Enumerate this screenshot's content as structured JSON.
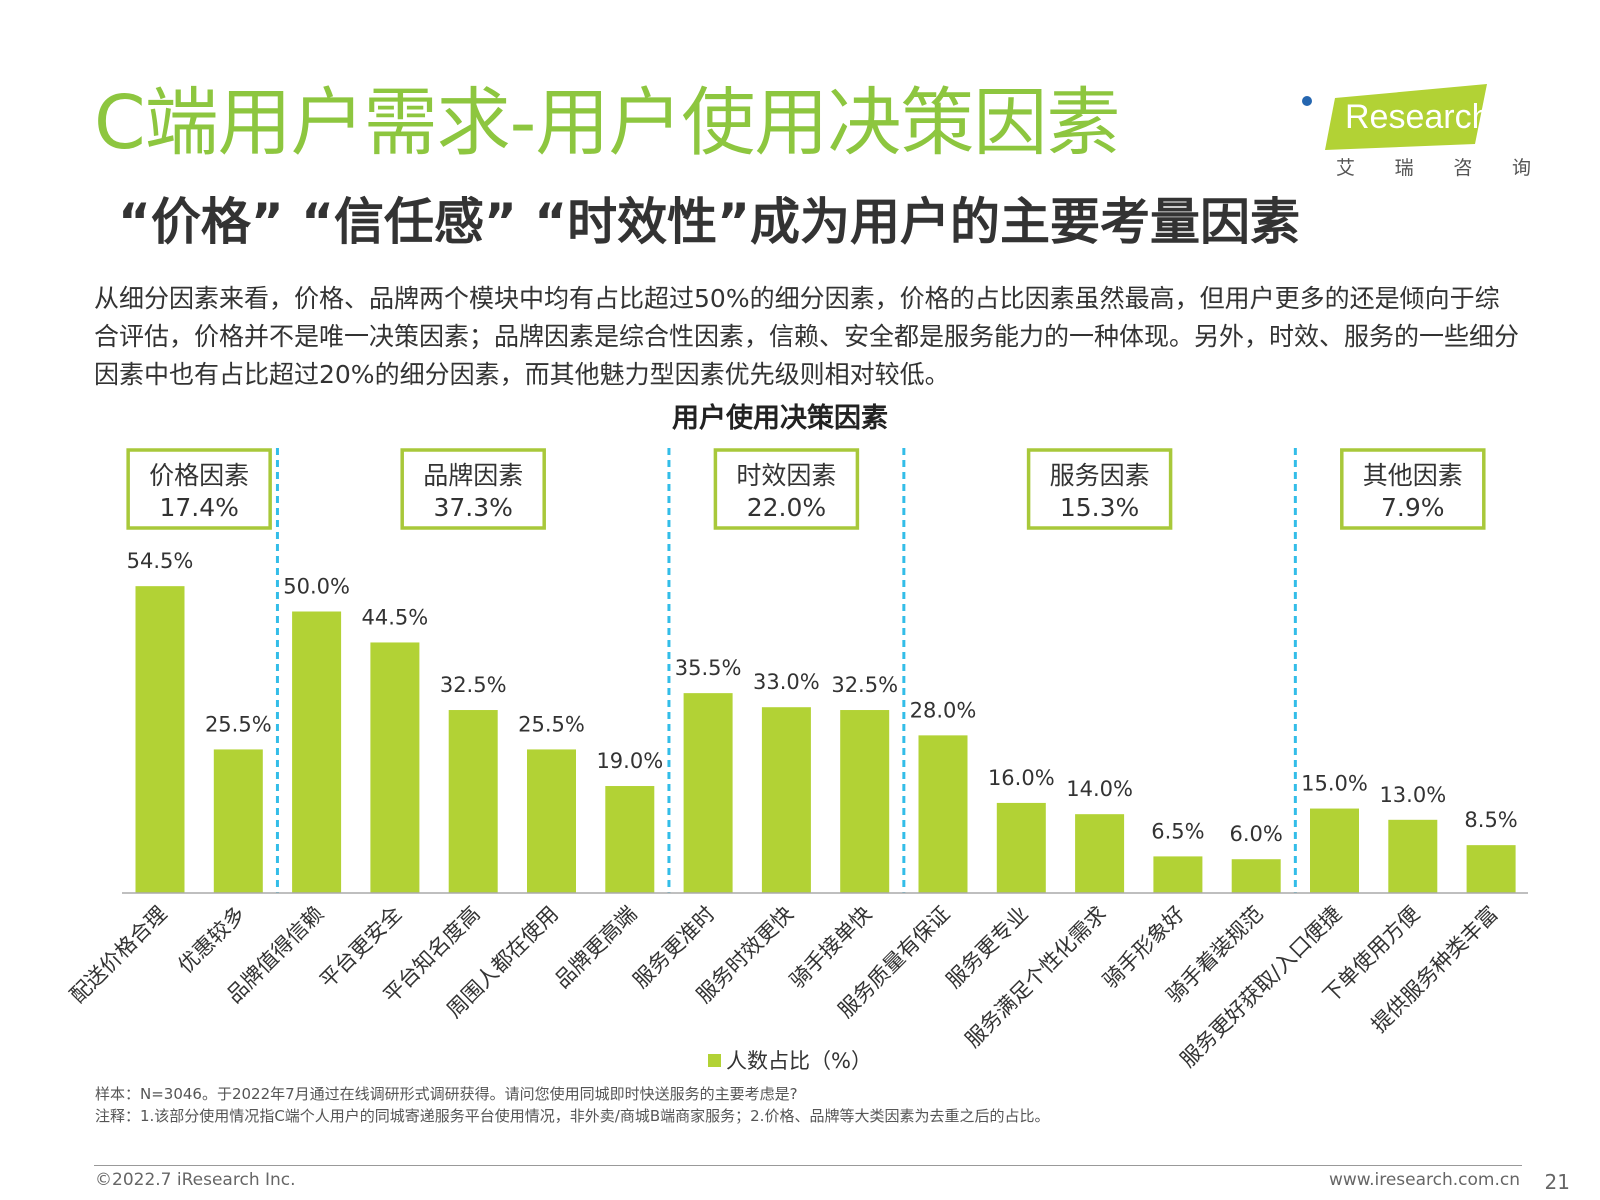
{
  "header": {
    "title": "C端用户需求-用户使用决策因素",
    "subtitle": "“价格” “信任感” “时效性”成为用户的主要考量因素",
    "logo_text": "Research",
    "logo_cn": [
      "艾",
      "瑞",
      "咨",
      "询"
    ]
  },
  "body_text": "从细分因素来看，价格、品牌两个模块中均有占比超过50%的细分因素，价格的占比因素虽然最高，但用户更多的还是倾向于综合评估，价格并不是唯一决策因素；品牌因素是综合性因素，信赖、安全都是服务能力的一种体现。另外，时效、服务的一些细分因素中也有占比超过20%的细分因素，而其他魅力型因素优先级则相对较低。",
  "chart_data": {
    "type": "bar",
    "title": "用户使用决策因素",
    "categories": [
      "配送价格合理",
      "优惠较多",
      "品牌值得信赖",
      "平台更安全",
      "平台知名度高",
      "周围人都在使用",
      "品牌更高端",
      "服务更准时",
      "服务时效更快",
      "骑手接单快",
      "服务质量有保证",
      "服务更专业",
      "服务满足个性化需求",
      "骑手形象好",
      "骑手着装规范",
      "服务更好获取/入口便捷",
      "下单使用方便",
      "提供服务种类丰富"
    ],
    "values": [
      54.5,
      25.5,
      50.0,
      44.5,
      32.5,
      25.5,
      19.0,
      35.5,
      33.0,
      32.5,
      28.0,
      16.0,
      14.0,
      6.5,
      6.0,
      15.0,
      13.0,
      8.5
    ],
    "value_labels": [
      "54.5%",
      "25.5%",
      "50.0%",
      "44.5%",
      "32.5%",
      "25.5%",
      "19.0%",
      "35.5%",
      "33.0%",
      "32.5%",
      "28.0%",
      "16.0%",
      "14.0%",
      "6.5%",
      "6.0%",
      "15.0%",
      "13.0%",
      "8.5%"
    ],
    "groups": [
      {
        "name": "价格因素",
        "share": "17.4%",
        "start": 0,
        "end": 1
      },
      {
        "name": "品牌因素",
        "share": "37.3%",
        "start": 2,
        "end": 6
      },
      {
        "name": "时效因素",
        "share": "22.0%",
        "start": 7,
        "end": 9
      },
      {
        "name": "服务因素",
        "share": "15.3%",
        "start": 10,
        "end": 14
      },
      {
        "name": "其他因素",
        "share": "7.9%",
        "start": 15,
        "end": 17
      }
    ],
    "legend": "人数占比（%）",
    "ylim": [
      0,
      60
    ],
    "bar_color": "#b2d235",
    "group_box_color": "#a8c83a",
    "divider_color": "#33bde8"
  },
  "footer": {
    "sample": "样本：N=3046。于2022年7月通过在线调研形式调研获得。请问您使用同城即时快送服务的主要考虑是?",
    "note": "注释：1.该部分使用情况指C端个人用户的同城寄递服务平台使用情况，非外卖/商城B端商家服务；2.价格、品牌等大类因素为去重之后的占比。",
    "copyright": "©2022.7 iResearch Inc.",
    "website": "www.iresearch.com.cn",
    "page_number": "21"
  }
}
